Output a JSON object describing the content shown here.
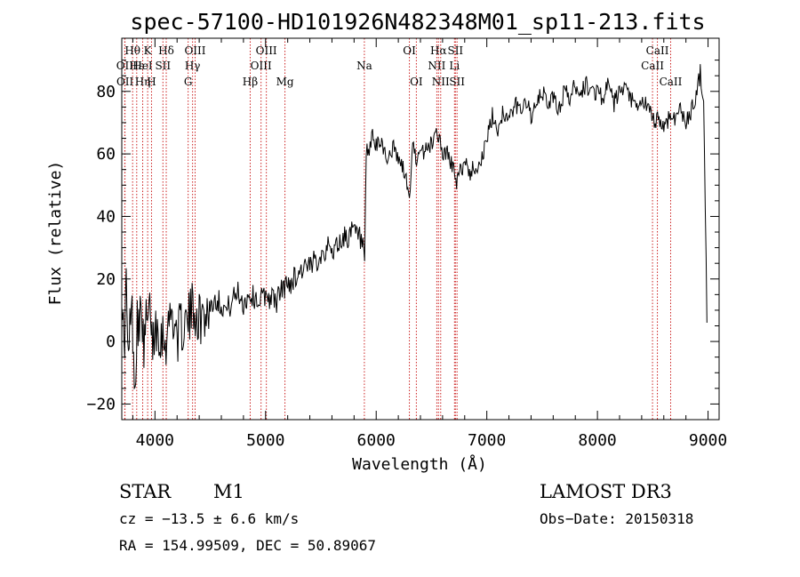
{
  "chart_data": {
    "type": "line",
    "title": "spec-57100-HD101926N482348M01_sp11-213.fits",
    "xlabel": "Wavelength (Å)",
    "ylabel": "Flux (relative)",
    "xlim": [
      3700,
      9100
    ],
    "ylim": [
      -25,
      97
    ],
    "xticks": [
      4000,
      5000,
      6000,
      7000,
      8000,
      9000
    ],
    "yticks": [
      -20,
      0,
      20,
      40,
      60,
      80
    ],
    "colors": {
      "spectrum": "#000000",
      "lines": "#cc2222"
    },
    "series": [
      {
        "x": [
          3700,
          3720,
          3740,
          3760,
          3780,
          3800,
          3820,
          3840,
          3860,
          3880,
          3900,
          3920,
          3940,
          3960,
          3980,
          4000,
          4050,
          4100,
          4150,
          4200,
          4250,
          4300,
          4350,
          4400,
          4450,
          4500,
          4550,
          4600,
          4650,
          4700,
          4750,
          4800,
          4850,
          4900,
          4950,
          5000,
          5050,
          5100,
          5150,
          5200,
          5250,
          5300,
          5350,
          5400,
          5450,
          5500,
          5550,
          5600,
          5650,
          5700,
          5750,
          5800,
          5850,
          5880,
          5895,
          5910,
          5930,
          5960,
          6000,
          6050,
          6100,
          6150,
          6200,
          6250,
          6300,
          6330,
          6380,
          6450,
          6500,
          6550,
          6600,
          6650,
          6700,
          6720,
          6760,
          6800,
          6850,
          6900,
          6950,
          7000,
          7050,
          7100,
          7150,
          7200,
          7250,
          7300,
          7350,
          7400,
          7450,
          7500,
          7550,
          7600,
          7650,
          7700,
          7750,
          7800,
          7850,
          7900,
          7950,
          8000,
          8050,
          8100,
          8150,
          8200,
          8250,
          8300,
          8350,
          8400,
          8450,
          8500,
          8550,
          8600,
          8650,
          8700,
          8750,
          8800,
          8850,
          8900,
          8930,
          8960,
          8990
        ],
        "y": [
          20,
          -5,
          18,
          -10,
          12,
          5,
          -15,
          10,
          2,
          15,
          -8,
          8,
          4,
          12,
          -2,
          6,
          3,
          1,
          10,
          2,
          5,
          6,
          12,
          7,
          9,
          11,
          14,
          12,
          10,
          13,
          16,
          12,
          15,
          14,
          13,
          15,
          14,
          13,
          17,
          18,
          20,
          22,
          24,
          23,
          26,
          28,
          30,
          29,
          31,
          33,
          34,
          35,
          33,
          30,
          22,
          60,
          58,
          66,
          62,
          64,
          58,
          62,
          58,
          55,
          46,
          62,
          58,
          62,
          63,
          68,
          60,
          60,
          55,
          50,
          54,
          58,
          54,
          56,
          58,
          64,
          72,
          68,
          74,
          70,
          76,
          74,
          78,
          72,
          75,
          80,
          76,
          78,
          74,
          80,
          78,
          82,
          80,
          82,
          80,
          80,
          78,
          82,
          76,
          80,
          80,
          78,
          74,
          76,
          76,
          70,
          72,
          68,
          72,
          72,
          74,
          70,
          74,
          80,
          86,
          78,
          6
        ]
      }
    ],
    "spectral_lines": [
      {
        "label": "OII",
        "x": 3727,
        "row": 2
      },
      {
        "label": "OII",
        "x": 3729,
        "row": 3
      },
      {
        "label": "Hθ",
        "x": 3798,
        "row": 1
      },
      {
        "label": "Hε",
        "x": 3835,
        "row": 2
      },
      {
        "label": "HeI",
        "x": 3889,
        "row": 2
      },
      {
        "label": "Hη",
        "x": 3889,
        "row": 3
      },
      {
        "label": "K",
        "x": 3934,
        "row": 1
      },
      {
        "label": "H",
        "x": 3969,
        "row": 3
      },
      {
        "label": "SII",
        "x": 4072,
        "row": 2
      },
      {
        "label": "Hδ",
        "x": 4102,
        "row": 1
      },
      {
        "label": "G",
        "x": 4300,
        "row": 3
      },
      {
        "label": "Hγ",
        "x": 4340,
        "row": 2
      },
      {
        "label": "OIII",
        "x": 4363,
        "row": 1
      },
      {
        "label": "Hβ",
        "x": 4861,
        "row": 3
      },
      {
        "label": "OIII",
        "x": 4959,
        "row": 2
      },
      {
        "label": "OIII",
        "x": 5007,
        "row": 1
      },
      {
        "label": "Mg",
        "x": 5175,
        "row": 3
      },
      {
        "label": "Na",
        "x": 5893,
        "row": 2
      },
      {
        "label": "OI",
        "x": 6300,
        "row": 1
      },
      {
        "label": "OI",
        "x": 6363,
        "row": 3
      },
      {
        "label": "NII",
        "x": 6548,
        "row": 2
      },
      {
        "label": "Hα",
        "x": 6563,
        "row": 1
      },
      {
        "label": "NII",
        "x": 6583,
        "row": 3
      },
      {
        "label": "Li",
        "x": 6708,
        "row": 2
      },
      {
        "label": "SII",
        "x": 6716,
        "row": 1
      },
      {
        "label": "SII",
        "x": 6731,
        "row": 3
      },
      {
        "label": "CaII",
        "x": 8498,
        "row": 2
      },
      {
        "label": "CaII",
        "x": 8542,
        "row": 1
      },
      {
        "label": "CaII",
        "x": 8662,
        "row": 3
      }
    ]
  },
  "info": {
    "object_type": "STAR",
    "subclass": "M1",
    "survey": "LAMOST DR3",
    "cz": "cz = −13.5 ± 6.6 km/s",
    "obs_date": "Obs−Date: 20150318",
    "coords": "RA = 154.99509, DEC =  50.89067"
  }
}
